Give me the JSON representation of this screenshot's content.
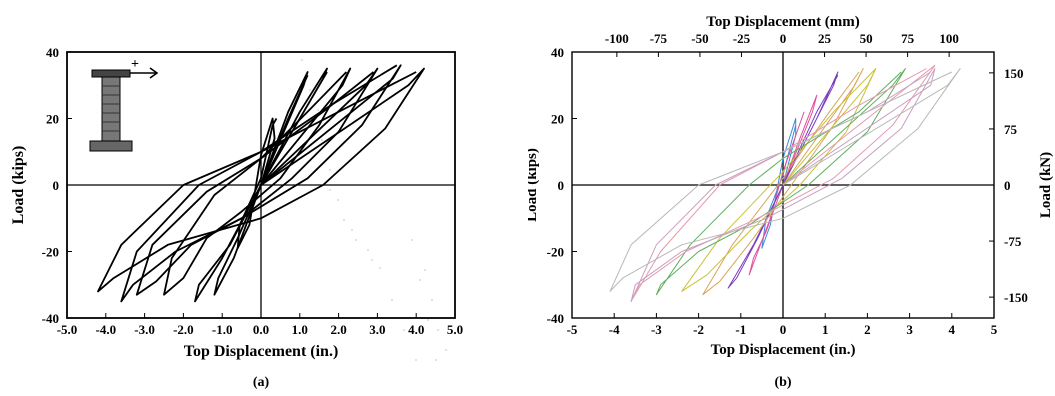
{
  "colors": {
    "ink": "#000000",
    "cycle_colors": [
      "#b8b8b8",
      "#c6a0c0",
      "#e69ab0",
      "#5fae5f",
      "#c7c23a",
      "#d7a35a",
      "#7a3cbf",
      "#e04f9a",
      "#3a8ad8"
    ]
  },
  "panels": [
    {
      "caption": "(a)"
    },
    {
      "caption": "(b)"
    }
  ],
  "chart_data": [
    {
      "type": "line",
      "caption": "(a)",
      "xlabel": "Top Displacement (in.)",
      "ylabel": "Load  (kips)",
      "xlim": [
        -5,
        5
      ],
      "ylim": [
        -40,
        40
      ],
      "x_ticks": [
        -5,
        -4,
        -3,
        -2,
        -1,
        0,
        1,
        2,
        3,
        4,
        5
      ],
      "x_tick_labels": [
        "-5.0",
        "-4.0",
        "-3.0",
        "-2.0",
        "-1.0",
        "0.0",
        "1.0",
        "2.0",
        "3.0",
        "4.0",
        "5.0"
      ],
      "y_ticks": [
        -40,
        -20,
        0,
        20,
        40
      ],
      "y_tick_labels": [
        "-40",
        "-20",
        "0",
        "20",
        "40"
      ],
      "inset_annotation": "+",
      "series": [
        {
          "x": [
            0,
            0.35,
            0.3,
            0,
            -0.3,
            -0.6,
            -0.55,
            0,
            0.3,
            0.4
          ],
          "y": [
            0,
            14,
            20,
            9,
            -12,
            -19,
            -12,
            2,
            18,
            20
          ]
        },
        {
          "x": [
            0,
            1.1,
            1.2,
            0.7,
            0,
            -0.6,
            -1.1,
            -1.2,
            -0.7,
            0,
            0.7,
            1.2
          ],
          "y": [
            0,
            30,
            34,
            22,
            0,
            -16,
            -28,
            -33,
            -22,
            0,
            20,
            33
          ]
        },
        {
          "x": [
            0,
            1.6,
            1.7,
            1.0,
            0,
            -0.8,
            -1.6,
            -1.7,
            -1.0,
            0,
            1.0,
            1.7
          ],
          "y": [
            0,
            32,
            35,
            22,
            0,
            -18,
            -30,
            -35,
            -22,
            0,
            20,
            34
          ]
        },
        {
          "x": [
            0,
            2.1,
            2.3,
            1.5,
            0.5,
            -0.5,
            -1.4,
            -2.0,
            -2.5,
            -2.3,
            -1.2,
            0,
            1.2,
            2.2
          ],
          "y": [
            0,
            30,
            35,
            18,
            2,
            -8,
            -16,
            -28,
            -33,
            -22,
            -3,
            8,
            22,
            34
          ]
        },
        {
          "x": [
            0,
            2.7,
            3.0,
            2.0,
            0.8,
            -0.5,
            -1.8,
            -2.7,
            -3.2,
            -2.8,
            -1.4,
            0,
            1.6,
            2.9
          ],
          "y": [
            0,
            30,
            35,
            16,
            2,
            -10,
            -18,
            -29,
            -33,
            -18,
            -2,
            8,
            22,
            34
          ]
        },
        {
          "x": [
            0,
            3.4,
            3.6,
            2.6,
            1.2,
            -0.5,
            -2.2,
            -3.3,
            -3.6,
            -3.2,
            -1.6,
            0,
            1.8,
            3.5
          ],
          "y": [
            0,
            32,
            36,
            18,
            2,
            -10,
            -20,
            -30,
            -35,
            -20,
            0,
            10,
            24,
            36
          ]
        },
        {
          "x": [
            0,
            3.8,
            4.2,
            3.2,
            1.6,
            0,
            -2.4,
            -3.8,
            -4.2,
            -3.6,
            -2.0,
            0,
            2.0,
            4.0
          ],
          "y": [
            0,
            30,
            35,
            17,
            0,
            -10,
            -18,
            -28,
            -32,
            -18,
            0,
            10,
            22,
            34
          ]
        }
      ]
    },
    {
      "type": "line",
      "caption": "(b)",
      "xlabel": "Top Displacement (in.)",
      "ylabel": "Load (kips)",
      "x2label": "Top Displacement (mm)",
      "y2label": "Load (kN)",
      "xlim": [
        -5,
        5
      ],
      "ylim": [
        -40,
        40
      ],
      "x_ticks": [
        -5,
        -4,
        -3,
        -2,
        -1,
        0,
        1,
        2,
        3,
        4,
        5
      ],
      "x_tick_labels": [
        "-5",
        "-4",
        "-3",
        "-2",
        "-1",
        "0",
        "1",
        "2",
        "3",
        "4",
        "5"
      ],
      "y_ticks": [
        -40,
        -20,
        0,
        20,
        40
      ],
      "y_tick_labels": [
        "-40",
        "-20",
        "0",
        "20",
        "40"
      ],
      "x2_ticks": [
        -100,
        -75,
        -50,
        -25,
        0,
        25,
        50,
        75,
        100
      ],
      "x2_tick_labels": [
        "-100",
        "-75",
        "-50",
        "-25",
        "0",
        "25",
        "50",
        "75",
        "100"
      ],
      "y2_ticks": [
        -150,
        -75,
        0,
        75,
        150
      ],
      "y2_tick_labels": [
        "-150",
        "-75",
        "0",
        "75",
        "150"
      ],
      "series": [
        {
          "x": [
            0,
            0.3,
            0.3,
            0,
            -0.3,
            -0.5,
            -0.4,
            0,
            0.3
          ],
          "y": [
            0,
            15,
            20,
            8,
            -12,
            -19,
            -10,
            3,
            18
          ],
          "color": "#3a8ad8"
        },
        {
          "x": [
            0,
            0.7,
            0.8,
            0.4,
            0,
            -0.4,
            -0.7,
            -0.8,
            -0.3,
            0,
            0.5
          ],
          "y": [
            0,
            22,
            27,
            14,
            0,
            -14,
            -22,
            -27,
            -10,
            4,
            22
          ],
          "color": "#e04f9a"
        },
        {
          "x": [
            0,
            1.2,
            1.3,
            0.8,
            0,
            -0.6,
            -1.1,
            -1.3,
            -0.7,
            0,
            0.8,
            1.3
          ],
          "y": [
            0,
            30,
            34,
            20,
            0,
            -16,
            -28,
            -31,
            -18,
            0,
            22,
            33
          ],
          "color": "#7a3cbf"
        },
        {
          "x": [
            0,
            1.7,
            1.9,
            1.2,
            0.2,
            -0.7,
            -1.5,
            -1.9,
            -1.2,
            0,
            1.1,
            1.8
          ],
          "y": [
            0,
            30,
            35,
            18,
            0,
            -16,
            -29,
            -33,
            -18,
            2,
            22,
            34
          ],
          "color": "#d7a35a"
        },
        {
          "x": [
            0,
            2.0,
            2.2,
            1.5,
            0.4,
            -0.8,
            -1.8,
            -2.4,
            -1.5,
            0,
            1.2,
            2.2
          ],
          "y": [
            0,
            30,
            35,
            16,
            0,
            -14,
            -27,
            -32,
            -16,
            4,
            22,
            35
          ],
          "color": "#c7c23a"
        },
        {
          "x": [
            0,
            2.6,
            2.9,
            2.0,
            0.6,
            -0.8,
            -2.0,
            -2.9,
            -3.0,
            -2.2,
            -0.8,
            0,
            1.8,
            2.8
          ],
          "y": [
            0,
            30,
            35,
            16,
            0,
            -12,
            -20,
            -30,
            -33,
            -18,
            0,
            8,
            22,
            34
          ],
          "color": "#5fae5f"
        },
        {
          "x": [
            0,
            3.2,
            3.6,
            2.6,
            1.2,
            -0.6,
            -2.3,
            -3.4,
            -3.6,
            -2.9,
            -1.5,
            0,
            1.8,
            3.4
          ],
          "y": [
            0,
            32,
            36,
            18,
            2,
            -10,
            -20,
            -30,
            -35,
            -20,
            0,
            10,
            24,
            35
          ],
          "color": "#e69ab0"
        },
        {
          "x": [
            0,
            3.5,
            3.6,
            2.8,
            1.4,
            -0.4,
            -2.4,
            -3.5,
            -3.6,
            -3.0,
            -1.6,
            0,
            2.0,
            3.5
          ],
          "y": [
            0,
            30,
            35,
            17,
            2,
            -10,
            -20,
            -30,
            -35,
            -18,
            0,
            10,
            22,
            34
          ],
          "color": "#c6a0c0"
        },
        {
          "x": [
            0,
            3.9,
            4.2,
            3.2,
            1.6,
            0,
            -2.4,
            -3.8,
            -4.1,
            -3.6,
            -2.0,
            0,
            2.0,
            4.0
          ],
          "y": [
            0,
            30,
            35,
            17,
            0,
            -10,
            -18,
            -28,
            -32,
            -18,
            0,
            10,
            22,
            34
          ],
          "color": "#b8b8b8"
        }
      ]
    }
  ]
}
